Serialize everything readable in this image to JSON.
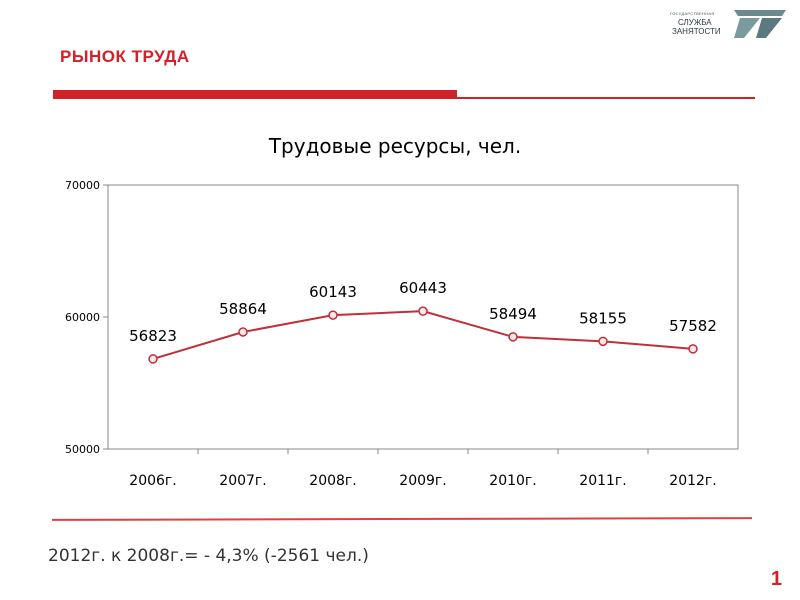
{
  "header": {
    "title": "РЫНОК ТРУДА",
    "logo_line1": "ГОСУДАРСТВЕННАЯ",
    "logo_line2": "СЛУЖБА",
    "logo_line3": "ЗАНЯТОСТИ"
  },
  "colors": {
    "accent": "#d42027",
    "line": "#c0303a",
    "marker_fill": "#f8e8e8"
  },
  "chart_data": {
    "type": "line",
    "title": "Трудовые ресурсы, чел.",
    "categories": [
      "2006г.",
      "2007г.",
      "2008г.",
      "2009г.",
      "2010г.",
      "2011г.",
      "2012г."
    ],
    "values": [
      56823,
      58864,
      60143,
      60443,
      58494,
      58155,
      57582
    ],
    "ylim": [
      50000,
      70000
    ],
    "yticks": [
      "50000",
      "60000",
      "70000"
    ],
    "grid": false,
    "legend": "none"
  },
  "footer": {
    "summary": "2012г. к 2008г.= - 4,3% (-2561 чел.)",
    "page_number": "1"
  }
}
